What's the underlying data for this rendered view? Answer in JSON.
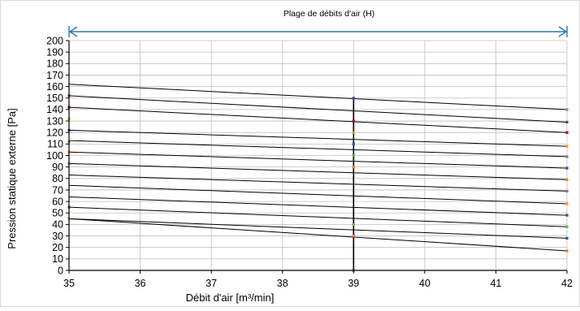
{
  "chart_data": {
    "type": "line",
    "title": "",
    "range_label": "Plage de débits d'air (H)",
    "xlabel": "Débit d'air [m³/min]",
    "ylabel": "Pression statique externe [Pa]",
    "xlim": [
      35,
      42
    ],
    "ylim": [
      0,
      200
    ],
    "x_ticks": [
      "35",
      "36",
      "37",
      "38",
      "39",
      "40",
      "41",
      "42"
    ],
    "y_ticks": [
      "0",
      "10",
      "20",
      "30",
      "40",
      "50",
      "60",
      "70",
      "80",
      "90",
      "100",
      "110",
      "120",
      "130",
      "140",
      "150",
      "160",
      "170",
      "180",
      "190",
      "200"
    ],
    "range_x": [
      35,
      42
    ],
    "x": [
      35,
      42
    ],
    "series": [
      {
        "values": [
          162,
          140
        ]
      },
      {
        "values": [
          152,
          129
        ]
      },
      {
        "values": [
          142,
          120
        ]
      },
      {
        "values": [
          122,
          108
        ]
      },
      {
        "values": [
          113,
          99
        ]
      },
      {
        "values": [
          103,
          89
        ]
      },
      {
        "values": [
          93,
          79
        ]
      },
      {
        "values": [
          83,
          69
        ]
      },
      {
        "values": [
          74,
          58
        ]
      },
      {
        "values": [
          64,
          48
        ]
      },
      {
        "values": [
          55,
          38
        ]
      },
      {
        "values": [
          45,
          28
        ]
      },
      {
        "values": [
          45,
          17
        ]
      }
    ],
    "vertical_line": {
      "x": 39,
      "y_range": [
        0,
        150
      ]
    },
    "markers": [
      {
        "x": 35,
        "y": 152,
        "color": "#2f5597"
      },
      {
        "x": 35,
        "y": 142,
        "color": "#c00000"
      },
      {
        "x": 35,
        "y": 132,
        "color": "#e8a020"
      },
      {
        "x": 35,
        "y": 122,
        "color": "#2f5597"
      },
      {
        "x": 35,
        "y": 112,
        "color": "#70ad47"
      },
      {
        "x": 35,
        "y": 103,
        "color": "#ed7d31"
      },
      {
        "x": 35,
        "y": 93,
        "color": "#7f7f7f"
      },
      {
        "x": 35,
        "y": 55,
        "color": "#2f5597"
      },
      {
        "x": 35,
        "y": 45,
        "color": "#ed7d31"
      },
      {
        "x": 39,
        "y": 150,
        "color": "#2f5597"
      },
      {
        "x": 39,
        "y": 130,
        "color": "#c00000"
      },
      {
        "x": 39,
        "y": 120,
        "color": "#e8a020"
      },
      {
        "x": 39,
        "y": 110,
        "color": "#2f5597"
      },
      {
        "x": 39,
        "y": 100,
        "color": "#70ad47"
      },
      {
        "x": 39,
        "y": 90,
        "color": "#ed7d31"
      },
      {
        "x": 39,
        "y": 40,
        "color": "#70ad47"
      },
      {
        "x": 39,
        "y": 30,
        "color": "#ed7d31"
      },
      {
        "x": 39,
        "y": 0,
        "color": "#2f5597"
      },
      {
        "x": 42,
        "y": 140,
        "color": "#70ad47"
      },
      {
        "x": 42,
        "y": 129,
        "color": "#2f5597"
      },
      {
        "x": 42,
        "y": 120,
        "color": "#c00000"
      },
      {
        "x": 42,
        "y": 108,
        "color": "#e8a020"
      },
      {
        "x": 42,
        "y": 99,
        "color": "#7f7f7f"
      },
      {
        "x": 42,
        "y": 89,
        "color": "#2f5597"
      },
      {
        "x": 42,
        "y": 79,
        "color": "#ed7d31"
      },
      {
        "x": 42,
        "y": 69,
        "color": "#7f7f7f"
      },
      {
        "x": 42,
        "y": 58,
        "color": "#e8a020"
      },
      {
        "x": 42,
        "y": 48,
        "color": "#2f5597"
      },
      {
        "x": 42,
        "y": 38,
        "color": "#70ad47"
      },
      {
        "x": 42,
        "y": 28,
        "color": "#2f5597"
      },
      {
        "x": 42,
        "y": 17,
        "color": "#ed7d31"
      }
    ],
    "colors": {
      "line": "#000000",
      "grid": "#bfbfbf",
      "range_arrow": "#2e75b6",
      "border": "#bfbfbf"
    },
    "grid": true,
    "legend": "none"
  }
}
